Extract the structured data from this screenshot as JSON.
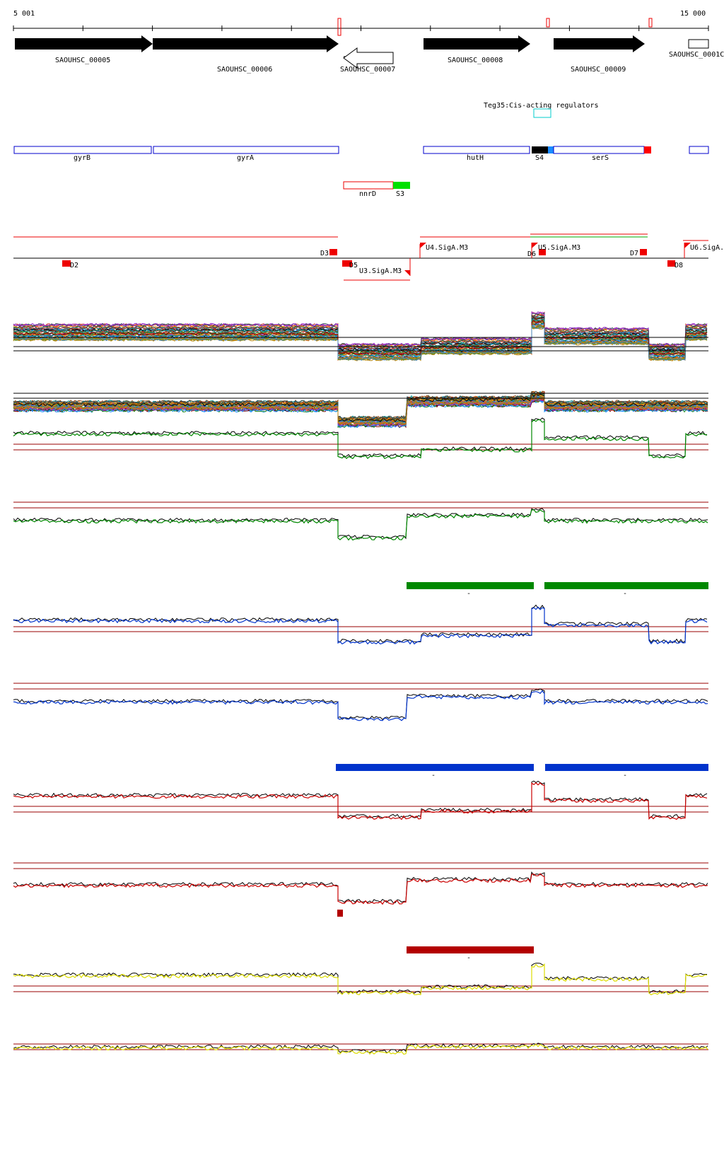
{
  "ruler": {
    "start_label": "5 001",
    "end_label": "15 000"
  },
  "cds_genes": [
    {
      "label": "SAOUHSC_00005",
      "strand": "+"
    },
    {
      "label": "SAOUHSC_00006",
      "strand": "+"
    },
    {
      "label": "SAOUHSC_00007",
      "strand": "-"
    },
    {
      "label": "SAOUHSC_00008",
      "strand": "+"
    },
    {
      "label": "SAOUHSC_00009",
      "strand": "+"
    },
    {
      "label": "SAOUHSC_0001C",
      "strand": "+"
    }
  ],
  "regulator": {
    "label": "Teg35:Cis-acting regulators"
  },
  "gene_names": [
    "gyrB",
    "gyrA",
    "hutH",
    "S4",
    "serS",
    "nnrD",
    "S3"
  ],
  "segments": {
    "down_labels": [
      "D2",
      "D3",
      "D5",
      "D6",
      "D7",
      "D8"
    ],
    "up_labels": [
      "U3.SigA.M3",
      "U4.SigA.M3",
      "U5.SigA.M3",
      "U6.SigA."
    ]
  },
  "colors": {
    "cds": "#000000",
    "gene_box": "#0000cc",
    "ncrna": "#ff0000",
    "segment": "#ff0000",
    "track_green": "#008800",
    "track_blue": "#0033cc",
    "track_red": "#cc0000",
    "track_yellow": "#dddd00",
    "threshold": "#990000",
    "regulator_box": "#00cccc",
    "bar_green": "#008800",
    "bar_blue": "#0033cc",
    "bar_red": "#b30000"
  },
  "bar_dash": "-"
}
